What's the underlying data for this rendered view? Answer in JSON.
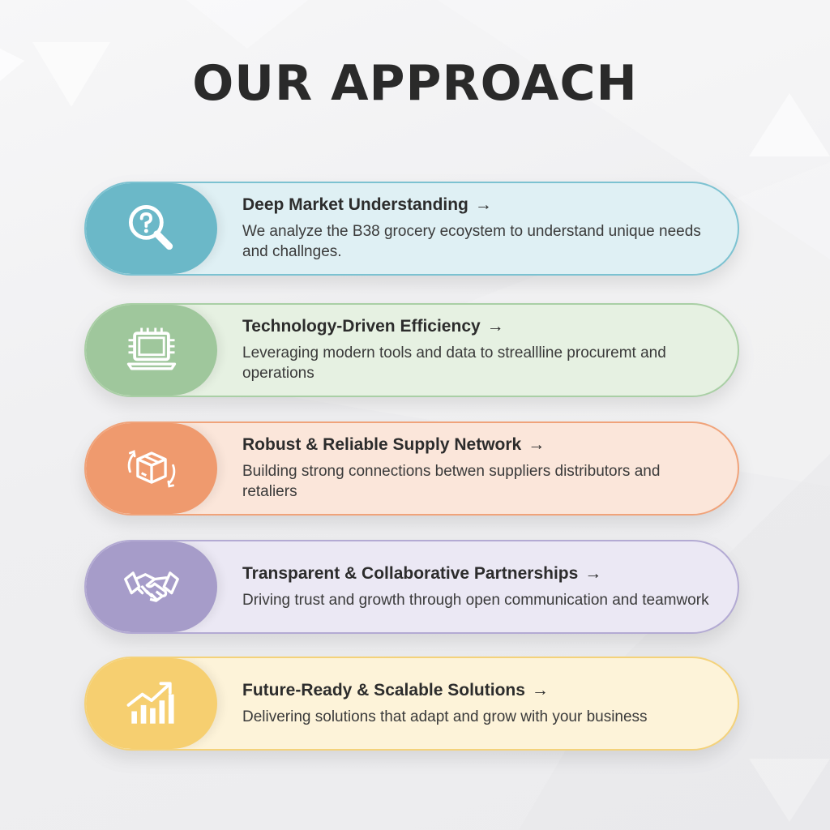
{
  "page": {
    "title": "OUR APPROACH"
  },
  "cards": [
    {
      "title": "Deep Market Understanding",
      "arrow": "→",
      "description": "We analyze the B38 grocery ecoystem to understand unique needs and challnges.",
      "icon": "magnifier-question-icon",
      "accent": "#6bb8c8",
      "background": "#dff0f4",
      "border": "#7cc2d1"
    },
    {
      "title": "Technology-Driven Efficiency",
      "arrow": "→",
      "description": "Leveraging modern tools and data to streallline procuremt and operations",
      "icon": "laptop-chip-icon",
      "accent": "#9fc79c",
      "background": "#e6f1e2",
      "border": "#a9cfa5"
    },
    {
      "title": "Robust & Reliable Supply Network",
      "arrow": "→",
      "description": "Building strong connections betwen suppliers distributors and retaliers",
      "icon": "box-cycle-icon",
      "accent": "#ef9a6e",
      "background": "#fbe6da",
      "border": "#f0a37a"
    },
    {
      "title": "Transparent & Collaborative Partnerships",
      "arrow": "→",
      "description": "Driving trust and growth through open communication and teamwork",
      "icon": "handshake-icon",
      "accent": "#a69cc9",
      "background": "#ebe8f4",
      "border": "#b3aad3"
    },
    {
      "title": "Future-Ready & Scalable Solutions",
      "arrow": "→",
      "description": "Delivering solutions that adapt and grow with your business",
      "icon": "growth-chart-icon",
      "accent": "#f6cf70",
      "background": "#fdf3d9",
      "border": "#f4d27a"
    }
  ]
}
